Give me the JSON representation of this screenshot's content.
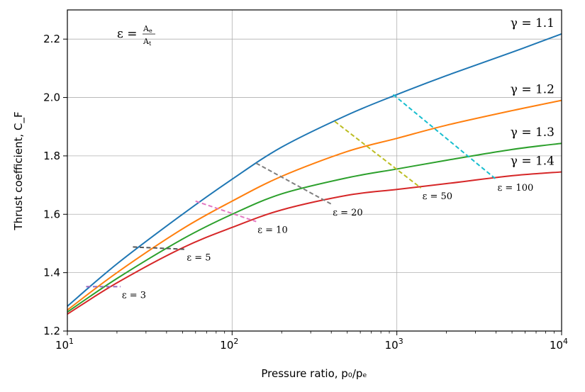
{
  "chart_data": {
    "type": "line",
    "title": "",
    "xlabel": "Pressure ratio, p₀/pₑ",
    "ylabel": "Thrust coefficient, C_F",
    "x_scale": "log",
    "xlim": [
      10,
      10000
    ],
    "ylim": [
      1.2,
      2.3
    ],
    "x_ticks": [
      10,
      100,
      1000,
      10000
    ],
    "x_tick_labels": [
      {
        "base": "10",
        "exp": "1"
      },
      {
        "base": "10",
        "exp": "2"
      },
      {
        "base": "10",
        "exp": "3"
      },
      {
        "base": "10",
        "exp": "4"
      }
    ],
    "y_ticks": [
      1.2,
      1.4,
      1.6,
      1.8,
      2.0,
      2.2
    ],
    "y_tick_labels": [
      "1.2",
      "1.4",
      "1.6",
      "1.8",
      "2.0",
      "2.2"
    ],
    "grid": true,
    "formula": {
      "lhs": "ε = ",
      "num": "A",
      "num_sub": "e",
      "den": "A",
      "den_sub": "t"
    },
    "series": [
      {
        "label_prefix": "γ = ",
        "label_value": "1.1",
        "color": "#1f77b4",
        "x": [
          10,
          20,
          50,
          100,
          200,
          500,
          1000,
          2000,
          5000,
          10000
        ],
        "y": [
          1.285,
          1.43,
          1.6,
          1.72,
          1.83,
          1.94,
          2.01,
          2.075,
          2.155,
          2.218
        ]
      },
      {
        "label_prefix": "γ = ",
        "label_value": "1.2",
        "color": "#ff7f0e",
        "x": [
          10,
          20,
          50,
          100,
          200,
          500,
          1000,
          2000,
          5000,
          10000
        ],
        "y": [
          1.272,
          1.4,
          1.55,
          1.645,
          1.73,
          1.815,
          1.86,
          1.905,
          1.955,
          1.99
        ]
      },
      {
        "label_prefix": "γ = ",
        "label_value": "1.3",
        "color": "#2ca02c",
        "x": [
          10,
          20,
          50,
          100,
          200,
          500,
          1000,
          2000,
          5000,
          10000
        ],
        "y": [
          1.265,
          1.38,
          1.515,
          1.6,
          1.67,
          1.725,
          1.755,
          1.785,
          1.822,
          1.843
        ]
      },
      {
        "label_prefix": "γ = ",
        "label_value": "1.4",
        "color": "#d62728",
        "x": [
          10,
          20,
          50,
          100,
          200,
          500,
          1000,
          2000,
          5000,
          10000
        ],
        "y": [
          1.258,
          1.365,
          1.485,
          1.555,
          1.615,
          1.665,
          1.685,
          1.705,
          1.732,
          1.745
        ]
      }
    ],
    "area_ratio_lines": [
      {
        "label_prefix": "ε = ",
        "label_value": "3",
        "color": "#9467bd",
        "x": [
          13,
          21
        ],
        "y": [
          1.352,
          1.352
        ]
      },
      {
        "label_prefix": "ε = ",
        "label_value": "5",
        "color": "#555555",
        "x": [
          25,
          52
        ],
        "y": [
          1.488,
          1.48
        ]
      },
      {
        "label_prefix": "ε = ",
        "label_value": "10",
        "color": "#e377c2",
        "x": [
          60,
          140
        ],
        "y": [
          1.645,
          1.575
        ]
      },
      {
        "label_prefix": "ε = ",
        "label_value": "20",
        "color": "#7f7f7f",
        "x": [
          140,
          400
        ],
        "y": [
          1.775,
          1.635
        ]
      },
      {
        "label_prefix": "ε = ",
        "label_value": "50",
        "color": "#bcbd22",
        "x": [
          420,
          1400
        ],
        "y": [
          1.918,
          1.69
        ]
      },
      {
        "label_prefix": "ε = ",
        "label_value": "100",
        "color": "#17becf",
        "x": [
          950,
          4000
        ],
        "y": [
          2.01,
          1.72
        ]
      }
    ]
  }
}
